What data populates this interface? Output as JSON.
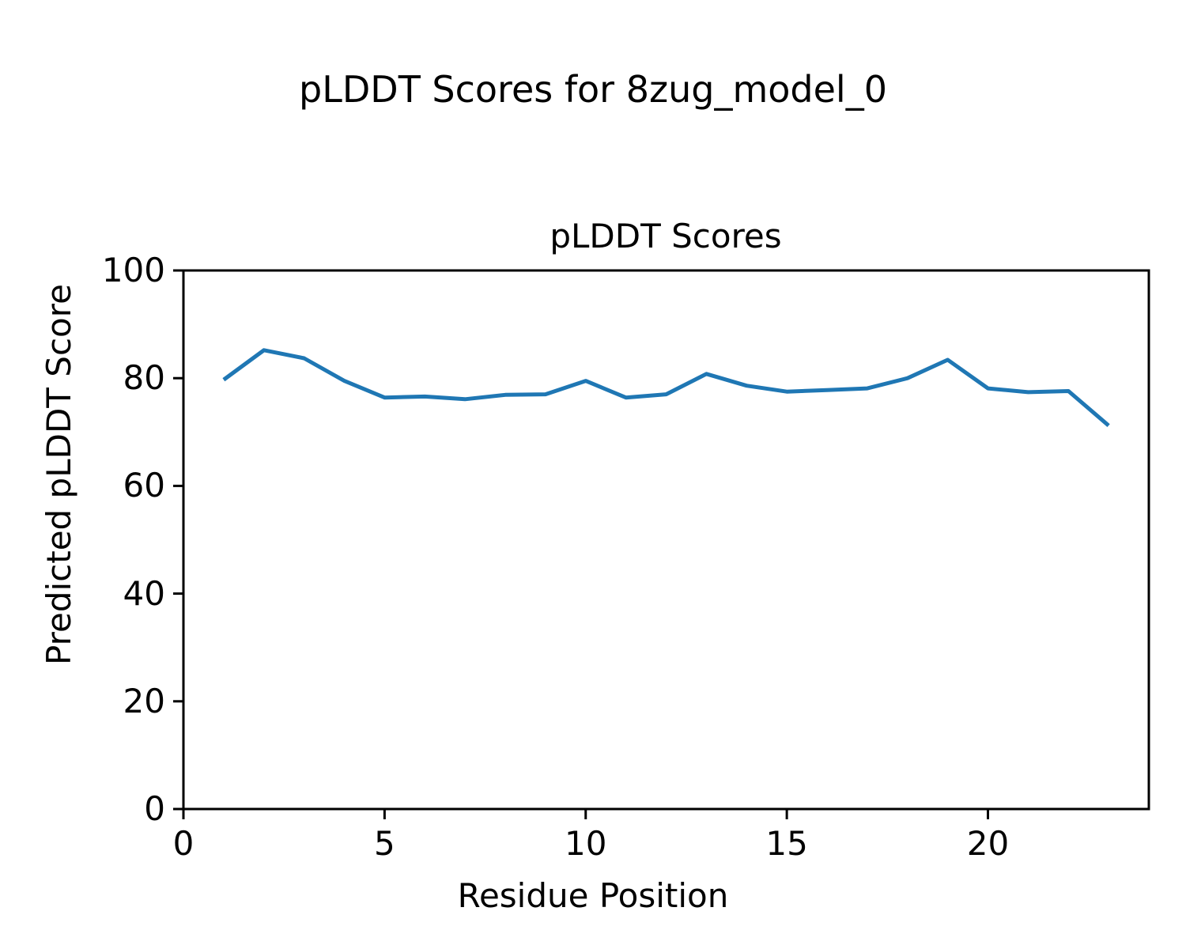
{
  "chart_data": {
    "type": "line",
    "suptitle": "pLDDT Scores for 8zug_model_0",
    "title": "pLDDT Scores",
    "xlabel": "Residue Position",
    "ylabel": "Predicted pLDDT Score",
    "x": [
      1,
      2,
      3,
      4,
      5,
      6,
      7,
      8,
      9,
      10,
      11,
      12,
      13,
      14,
      15,
      16,
      17,
      18,
      19,
      20,
      21,
      22,
      23
    ],
    "y": [
      79.7,
      85.2,
      83.7,
      79.5,
      76.4,
      76.6,
      76.1,
      76.9,
      77.0,
      79.5,
      76.4,
      77.0,
      80.8,
      78.6,
      77.5,
      77.8,
      78.1,
      80.0,
      83.4,
      78.1,
      77.4,
      77.6,
      71.2
    ],
    "xlim": [
      0,
      24
    ],
    "ylim": [
      0,
      100
    ],
    "xticks": [
      0,
      5,
      10,
      15,
      20
    ],
    "yticks": [
      0,
      20,
      40,
      60,
      80,
      100
    ],
    "line_color": "#1f77b4",
    "axis_color": "#000000",
    "grid": false,
    "legend": "none"
  }
}
